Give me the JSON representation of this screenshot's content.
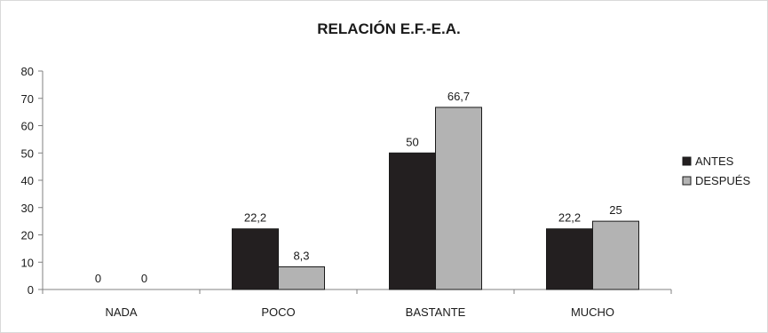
{
  "chart_data": {
    "type": "bar",
    "title": "RELACIÓN E.F.-E.A.",
    "xlabel": "",
    "ylabel": "",
    "categories": [
      "NADA",
      "POCO",
      "BASTANTE",
      "MUCHO"
    ],
    "series": [
      {
        "name": "ANTES",
        "values": [
          0,
          22.2,
          50,
          22.2
        ],
        "labels": [
          "0",
          "22,2",
          "50",
          "22,2"
        ],
        "color": "#231f20"
      },
      {
        "name": "DESPUÉS",
        "values": [
          0,
          8.3,
          66.7,
          25
        ],
        "labels": [
          "0",
          "8,3",
          "66,7",
          "25"
        ],
        "color": "#b3b3b3"
      }
    ],
    "ylim": [
      0,
      80
    ],
    "yticks": [
      0,
      10,
      20,
      30,
      40,
      50,
      60,
      70,
      80
    ],
    "grid": false,
    "legend_position": "right"
  }
}
